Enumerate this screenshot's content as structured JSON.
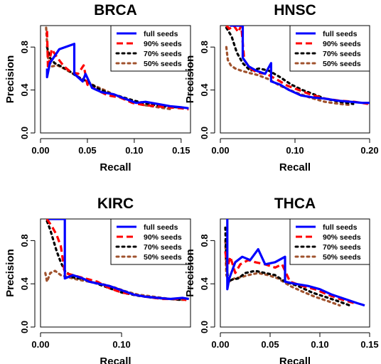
{
  "chart_data": [
    {
      "type": "line",
      "title": "BRCA",
      "xlabel": "Recall",
      "ylabel": "Precision",
      "xlim": [
        0.0,
        0.16
      ],
      "ylim": [
        0.0,
        1.0
      ],
      "xticks": [
        "0.00",
        "0.05",
        "0.10",
        "0.15"
      ],
      "xtick_values": [
        0.0,
        0.05,
        0.1,
        0.15
      ],
      "yticks": [
        "0.0",
        "0.4",
        "0.8"
      ],
      "ytick_values": [
        0.0,
        0.4,
        0.8
      ],
      "legend_position": "top-right",
      "series": [
        {
          "name": "full seeds",
          "color": "#0000FF",
          "dash": "solid",
          "x": [
            0.007,
            0.007,
            0.01,
            0.02,
            0.036,
            0.036,
            0.045,
            0.048,
            0.055,
            0.065,
            0.078,
            0.09,
            0.102,
            0.112,
            0.125,
            0.138,
            0.15,
            0.158
          ],
          "y": [
            0.6,
            0.52,
            0.65,
            0.78,
            0.83,
            0.55,
            0.48,
            0.55,
            0.42,
            0.38,
            0.36,
            0.32,
            0.28,
            0.29,
            0.27,
            0.25,
            0.24,
            0.23
          ]
        },
        {
          "name": "90% seeds",
          "color": "#FF0000",
          "dash": "dash",
          "x": [
            0.007,
            0.008,
            0.012,
            0.018,
            0.025,
            0.032,
            0.04,
            0.046,
            0.05,
            0.06,
            0.072,
            0.085,
            0.098,
            0.11,
            0.122,
            0.135,
            0.15,
            0.158
          ],
          "y": [
            0.95,
            0.6,
            0.78,
            0.7,
            0.62,
            0.57,
            0.55,
            0.63,
            0.45,
            0.4,
            0.35,
            0.33,
            0.28,
            0.26,
            0.25,
            0.24,
            0.23,
            0.22
          ]
        },
        {
          "name": "70% seeds",
          "color": "#000000",
          "dash": "dot",
          "x": [
            0.007,
            0.01,
            0.015,
            0.022,
            0.03,
            0.04,
            0.05,
            0.06,
            0.07,
            0.085,
            0.1,
            0.115,
            0.13,
            0.145,
            0.155
          ],
          "y": [
            0.8,
            0.7,
            0.65,
            0.62,
            0.58,
            0.52,
            0.48,
            0.42,
            0.38,
            0.34,
            0.3,
            0.27,
            0.25,
            0.24,
            0.23
          ]
        },
        {
          "name": "50% seeds",
          "color": "#A0522D",
          "dash": "dot",
          "x": [
            0.006,
            0.008,
            0.012,
            0.018,
            0.025,
            0.035,
            0.045,
            0.055,
            0.068,
            0.08,
            0.095,
            0.11,
            0.125,
            0.14
          ],
          "y": [
            0.98,
            0.7,
            0.62,
            0.63,
            0.6,
            0.55,
            0.5,
            0.45,
            0.4,
            0.35,
            0.3,
            0.26,
            0.24,
            0.22
          ]
        }
      ]
    },
    {
      "type": "line",
      "title": "HNSC",
      "xlabel": "Recall",
      "ylabel": "Precision",
      "xlim": [
        0.0,
        0.2
      ],
      "ylim": [
        0.0,
        1.0
      ],
      "xticks": [
        "0.00",
        "0.10",
        "0.20"
      ],
      "xtick_values": [
        0.0,
        0.1,
        0.2
      ],
      "yticks": [
        "0.0",
        "0.4",
        "0.8"
      ],
      "ytick_values": [
        0.0,
        0.4,
        0.8
      ],
      "legend_position": "top-right",
      "series": [
        {
          "name": "full seeds",
          "color": "#0000FF",
          "dash": "solid",
          "x": [
            0.013,
            0.03,
            0.03,
            0.038,
            0.048,
            0.06,
            0.068,
            0.068,
            0.08,
            0.092,
            0.108,
            0.125,
            0.14,
            0.158,
            0.175,
            0.19,
            0.2
          ],
          "y": [
            1.0,
            1.0,
            0.7,
            0.62,
            0.58,
            0.55,
            0.65,
            0.48,
            0.45,
            0.4,
            0.35,
            0.33,
            0.32,
            0.3,
            0.29,
            0.28,
            0.28
          ]
        },
        {
          "name": "90% seeds",
          "color": "#FF0000",
          "dash": "dash",
          "x": [
            0.008,
            0.012,
            0.018,
            0.024,
            0.028,
            0.032,
            0.04,
            0.05,
            0.062,
            0.075,
            0.09,
            0.105,
            0.12,
            0.14,
            0.16,
            0.18,
            0.198
          ],
          "y": [
            1.0,
            0.97,
            1.0,
            0.94,
            1.0,
            0.68,
            0.6,
            0.56,
            0.55,
            0.5,
            0.44,
            0.4,
            0.36,
            0.32,
            0.3,
            0.29,
            0.27
          ]
        },
        {
          "name": "70% seeds",
          "color": "#000000",
          "dash": "dot",
          "x": [
            0.008,
            0.015,
            0.022,
            0.03,
            0.04,
            0.052,
            0.065,
            0.08,
            0.095,
            0.11,
            0.125,
            0.14,
            0.16,
            0.178
          ],
          "y": [
            0.98,
            0.9,
            0.75,
            0.65,
            0.58,
            0.6,
            0.58,
            0.52,
            0.45,
            0.4,
            0.36,
            0.32,
            0.29,
            0.27
          ]
        },
        {
          "name": "50% seeds",
          "color": "#A0522D",
          "dash": "dot",
          "x": [
            0.008,
            0.01,
            0.014,
            0.02,
            0.028,
            0.038,
            0.05,
            0.065,
            0.08,
            0.1,
            0.12,
            0.14,
            0.16,
            0.175
          ],
          "y": [
            0.8,
            0.68,
            0.63,
            0.6,
            0.58,
            0.56,
            0.54,
            0.5,
            0.44,
            0.38,
            0.33,
            0.29,
            0.27,
            0.26
          ]
        }
      ]
    },
    {
      "type": "line",
      "title": "KIRC",
      "xlabel": "Recall",
      "ylabel": "Precision",
      "xlim": [
        0.0,
        0.185
      ],
      "ylim": [
        0.0,
        1.0
      ],
      "xticks": [
        "0.00",
        "0.10"
      ],
      "xtick_values": [
        0.0,
        0.1
      ],
      "yticks": [
        "0.0",
        "0.4",
        "0.8"
      ],
      "ytick_values": [
        0.0,
        0.4,
        0.8
      ],
      "legend_position": "top-right",
      "series": [
        {
          "name": "full seeds",
          "color": "#0000FF",
          "dash": "solid",
          "x": [
            0.01,
            0.03,
            0.03,
            0.04,
            0.052,
            0.06,
            0.072,
            0.085,
            0.1,
            0.115,
            0.13,
            0.145,
            0.16,
            0.175,
            0.183
          ],
          "y": [
            1.0,
            1.0,
            0.45,
            0.48,
            0.45,
            0.42,
            0.4,
            0.38,
            0.34,
            0.3,
            0.28,
            0.27,
            0.26,
            0.27,
            0.26
          ]
        },
        {
          "name": "90% seeds",
          "color": "#FF0000",
          "dash": "dash",
          "x": [
            0.008,
            0.015,
            0.02,
            0.025,
            0.03,
            0.04,
            0.055,
            0.07,
            0.085,
            0.1,
            0.115,
            0.13,
            0.15,
            0.17,
            0.18
          ],
          "y": [
            1.0,
            0.92,
            0.85,
            0.75,
            0.5,
            0.48,
            0.45,
            0.42,
            0.36,
            0.32,
            0.3,
            0.28,
            0.26,
            0.26,
            0.25
          ]
        },
        {
          "name": "70% seeds",
          "color": "#000000",
          "dash": "dot",
          "x": [
            0.008,
            0.012,
            0.016,
            0.02,
            0.025,
            0.03,
            0.04,
            0.055,
            0.07,
            0.085,
            0.1,
            0.12,
            0.14,
            0.16,
            0.175
          ],
          "y": [
            0.98,
            0.9,
            0.8,
            0.7,
            0.6,
            0.52,
            0.46,
            0.44,
            0.4,
            0.36,
            0.32,
            0.29,
            0.27,
            0.26,
            0.25
          ]
        },
        {
          "name": "50% seeds",
          "color": "#A0522D",
          "dash": "dot",
          "x": [
            0.006,
            0.008,
            0.012,
            0.018,
            0.025,
            0.035,
            0.045,
            0.06,
            0.075,
            0.09,
            0.105,
            0.12,
            0.14,
            0.16,
            0.178
          ],
          "y": [
            0.5,
            0.42,
            0.5,
            0.52,
            0.48,
            0.46,
            0.44,
            0.42,
            0.4,
            0.37,
            0.33,
            0.3,
            0.28,
            0.26,
            0.25
          ]
        }
      ]
    },
    {
      "type": "line",
      "title": "THCA",
      "xlabel": "Recall",
      "ylabel": "Precision",
      "xlim": [
        0.0,
        0.15
      ],
      "ylim": [
        0.0,
        1.0
      ],
      "xticks": [
        "0.00",
        "0.05",
        "0.10",
        "0.15"
      ],
      "xtick_values": [
        0.0,
        0.05,
        0.1,
        0.15
      ],
      "yticks": [
        "0.0",
        "0.4",
        "0.8"
      ],
      "ytick_values": [
        0.0,
        0.4,
        0.8
      ],
      "legend_position": "top-right",
      "series": [
        {
          "name": "full seeds",
          "color": "#0000FF",
          "dash": "solid",
          "x": [
            0.007,
            0.007,
            0.009,
            0.015,
            0.022,
            0.03,
            0.038,
            0.045,
            0.055,
            0.065,
            0.065,
            0.075,
            0.088,
            0.1,
            0.112,
            0.125,
            0.138,
            0.145
          ],
          "y": [
            1.0,
            0.35,
            0.45,
            0.6,
            0.65,
            0.62,
            0.72,
            0.58,
            0.6,
            0.65,
            0.42,
            0.4,
            0.38,
            0.35,
            0.3,
            0.26,
            0.22,
            0.2
          ]
        },
        {
          "name": "90% seeds",
          "color": "#FF0000",
          "dash": "dash",
          "x": [
            0.005,
            0.007,
            0.01,
            0.015,
            0.02,
            0.028,
            0.035,
            0.045,
            0.055,
            0.062,
            0.07,
            0.082,
            0.095,
            0.108,
            0.12,
            0.135
          ],
          "y": [
            0.7,
            0.55,
            0.65,
            0.5,
            0.58,
            0.62,
            0.6,
            0.58,
            0.55,
            0.58,
            0.42,
            0.38,
            0.35,
            0.3,
            0.26,
            0.22
          ]
        },
        {
          "name": "70% seeds",
          "color": "#000000",
          "dash": "dot",
          "x": [
            0.005,
            0.006,
            0.008,
            0.012,
            0.018,
            0.025,
            0.035,
            0.045,
            0.055,
            0.065,
            0.078,
            0.092,
            0.105,
            0.118,
            0.13
          ],
          "y": [
            0.92,
            0.6,
            0.42,
            0.44,
            0.45,
            0.5,
            0.52,
            0.5,
            0.48,
            0.42,
            0.38,
            0.32,
            0.28,
            0.24,
            0.2
          ]
        },
        {
          "name": "50% seeds",
          "color": "#A0522D",
          "dash": "dot",
          "x": [
            0.005,
            0.006,
            0.009,
            0.014,
            0.02,
            0.028,
            0.038,
            0.048,
            0.058,
            0.07,
            0.082,
            0.095,
            0.108,
            0.12
          ],
          "y": [
            0.8,
            0.48,
            0.42,
            0.45,
            0.46,
            0.48,
            0.5,
            0.48,
            0.45,
            0.38,
            0.33,
            0.28,
            0.24,
            0.2
          ]
        }
      ]
    }
  ]
}
